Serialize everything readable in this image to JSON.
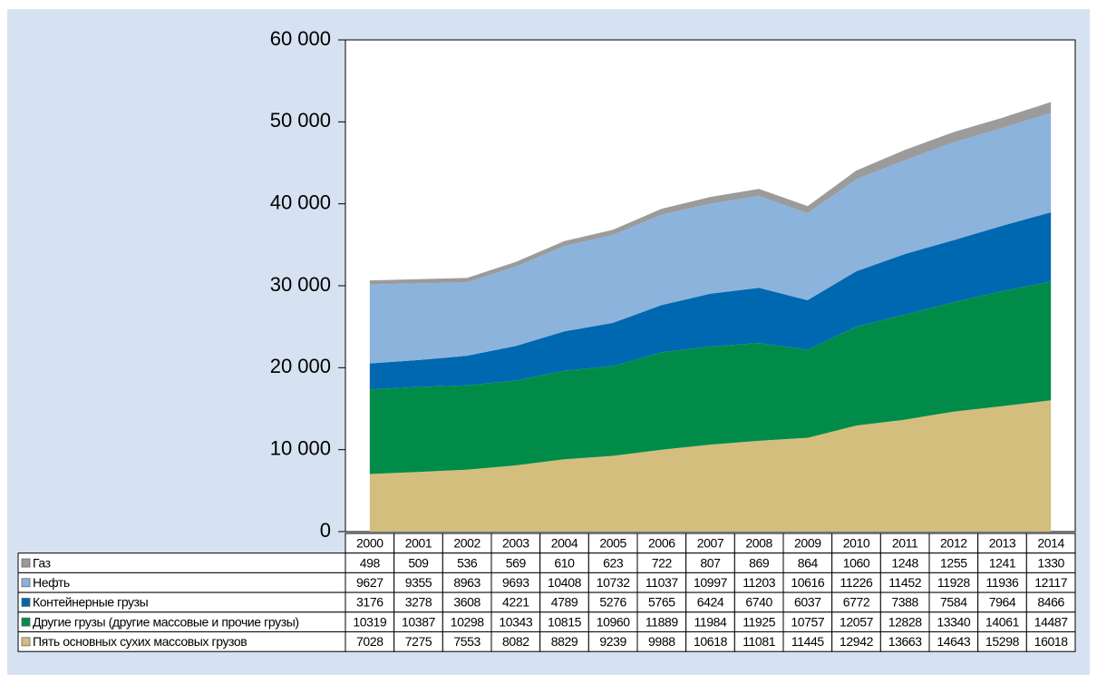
{
  "chart_data": {
    "type": "stacked-area",
    "categories": [
      "2000",
      "2001",
      "2002",
      "2003",
      "2004",
      "2005",
      "2006",
      "2007",
      "2008",
      "2009",
      "2010",
      "2011",
      "2012",
      "2013",
      "2014"
    ],
    "series": [
      {
        "name": "Газ",
        "color": "#9b9b9b",
        "values": [
          498,
          509,
          536,
          569,
          610,
          623,
          722,
          807,
          869,
          864,
          1060,
          1248,
          1255,
          1241,
          1330
        ]
      },
      {
        "name": "Нефть",
        "color": "#8cb3dc",
        "values": [
          9627,
          9355,
          8963,
          9693,
          10408,
          10732,
          11037,
          10997,
          11203,
          10616,
          11226,
          11452,
          11928,
          11936,
          12117
        ]
      },
      {
        "name": "Контейнерные грузы",
        "color": "#0068b0",
        "values": [
          3176,
          3278,
          3608,
          4221,
          4789,
          5276,
          5765,
          6424,
          6740,
          6037,
          6772,
          7388,
          7584,
          7964,
          8466
        ]
      },
      {
        "name": "Другие грузы (другие массовые и прочие грузы)",
        "color": "#008c48",
        "values": [
          10319,
          10387,
          10298,
          10343,
          10815,
          10960,
          11889,
          11984,
          11925,
          10757,
          12057,
          12828,
          13340,
          14061,
          14487
        ]
      },
      {
        "name": "Пять основных сухих массовых грузов",
        "color": "#d4be7e",
        "values": [
          7028,
          7275,
          7553,
          8082,
          8829,
          9239,
          9988,
          10618,
          11081,
          11445,
          12942,
          13663,
          14643,
          15298,
          16018
        ]
      }
    ],
    "ylim": [
      0,
      60000
    ],
    "yticks": [
      0,
      {
        "value": 10000,
        "label": "10 000"
      },
      {
        "value": 20000,
        "label": "20 000"
      },
      {
        "value": 30000,
        "label": "30 000"
      },
      {
        "value": 40000,
        "label": "40 000"
      },
      {
        "value": 50000,
        "label": "50 000"
      },
      {
        "value": 60000,
        "label": "60 000"
      }
    ]
  }
}
